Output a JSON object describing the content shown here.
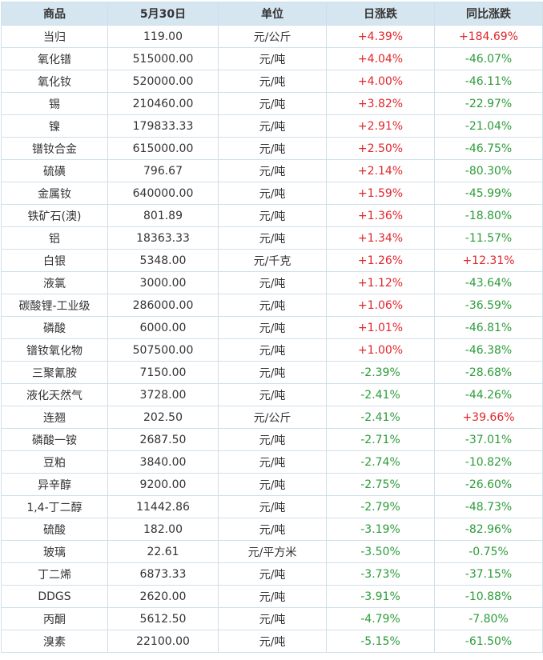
{
  "colors": {
    "up": "#e0262b",
    "down": "#2c9c3a",
    "header_bg": "#d6e6f0",
    "border": "#cfdfe8"
  },
  "headers": [
    "商品",
    "5月30日",
    "单位",
    "日涨跌",
    "同比涨跌"
  ],
  "rows": [
    [
      "当归",
      "119.00",
      "元/公斤",
      "+4.39%",
      "+184.69%"
    ],
    [
      "氧化镨",
      "515000.00",
      "元/吨",
      "+4.04%",
      "-46.07%"
    ],
    [
      "氧化钕",
      "520000.00",
      "元/吨",
      "+4.00%",
      "-46.11%"
    ],
    [
      "锡",
      "210460.00",
      "元/吨",
      "+3.82%",
      "-22.97%"
    ],
    [
      "镍",
      "179833.33",
      "元/吨",
      "+2.91%",
      "-21.04%"
    ],
    [
      "镨钕合金",
      "615000.00",
      "元/吨",
      "+2.50%",
      "-46.75%"
    ],
    [
      "硫磺",
      "796.67",
      "元/吨",
      "+2.14%",
      "-80.30%"
    ],
    [
      "金属钕",
      "640000.00",
      "元/吨",
      "+1.59%",
      "-45.99%"
    ],
    [
      "铁矿石(澳)",
      "801.89",
      "元/吨",
      "+1.36%",
      "-18.80%"
    ],
    [
      "铝",
      "18363.33",
      "元/吨",
      "+1.34%",
      "-11.57%"
    ],
    [
      "白银",
      "5348.00",
      "元/千克",
      "+1.26%",
      "+12.31%"
    ],
    [
      "液氯",
      "3000.00",
      "元/吨",
      "+1.12%",
      "-43.64%"
    ],
    [
      "碳酸锂-工业级",
      "286000.00",
      "元/吨",
      "+1.06%",
      "-36.59%"
    ],
    [
      "磷酸",
      "6000.00",
      "元/吨",
      "+1.01%",
      "-46.81%"
    ],
    [
      "镨钕氧化物",
      "507500.00",
      "元/吨",
      "+1.00%",
      "-46.38%"
    ],
    [
      "三聚氰胺",
      "7150.00",
      "元/吨",
      "-2.39%",
      "-28.68%"
    ],
    [
      "液化天然气",
      "3728.00",
      "元/吨",
      "-2.41%",
      "-44.26%"
    ],
    [
      "连翘",
      "202.50",
      "元/公斤",
      "-2.41%",
      "+39.66%"
    ],
    [
      "磷酸一铵",
      "2687.50",
      "元/吨",
      "-2.71%",
      "-37.01%"
    ],
    [
      "豆粕",
      "3840.00",
      "元/吨",
      "-2.74%",
      "-10.82%"
    ],
    [
      "异辛醇",
      "9200.00",
      "元/吨",
      "-2.75%",
      "-26.60%"
    ],
    [
      "1,4-丁二醇",
      "11442.86",
      "元/吨",
      "-2.79%",
      "-48.73%"
    ],
    [
      "硫酸",
      "182.00",
      "元/吨",
      "-3.19%",
      "-82.96%"
    ],
    [
      "玻璃",
      "22.61",
      "元/平方米",
      "-3.50%",
      "-0.75%"
    ],
    [
      "丁二烯",
      "6873.33",
      "元/吨",
      "-3.73%",
      "-37.15%"
    ],
    [
      "DDGS",
      "2620.00",
      "元/吨",
      "-3.91%",
      "-10.88%"
    ],
    [
      "丙酮",
      "5612.50",
      "元/吨",
      "-4.79%",
      "-7.80%"
    ],
    [
      "溴素",
      "22100.00",
      "元/吨",
      "-5.15%",
      "-61.50%"
    ]
  ]
}
